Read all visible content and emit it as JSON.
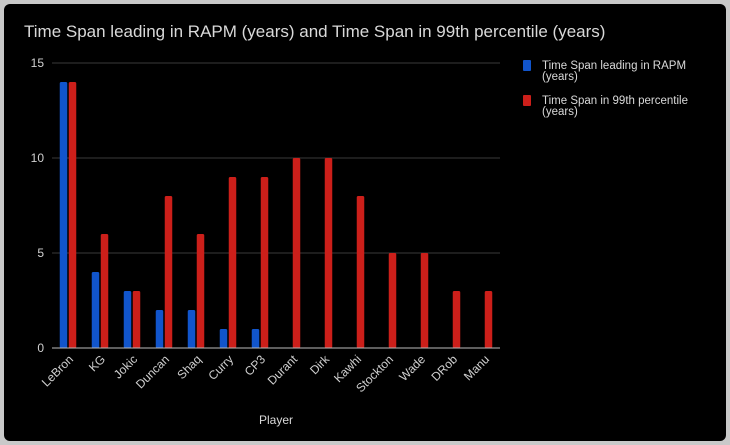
{
  "chart_data": {
    "type": "bar",
    "title": "Time Span leading in RAPM (years) and Time Span in 99th percentile (years)",
    "xlabel": "Player",
    "ylabel": "",
    "ylim": [
      0,
      15
    ],
    "yticks": [
      0,
      5,
      10,
      15
    ],
    "grid": true,
    "legend_position": "right",
    "categories": [
      "LeBron",
      "KG",
      "Jokic",
      "Duncan",
      "Shaq",
      "Curry",
      "CP3",
      "Durant",
      "Dirk",
      "Kawhi",
      "Stockton",
      "Wade",
      "DRob",
      "Manu"
    ],
    "series": [
      {
        "name": "Time Span leading in RAPM (years)",
        "legend_lines": [
          "Time Span leading in RAPM",
          "(years)"
        ],
        "color": "#1155cc",
        "values": [
          14,
          4,
          3,
          2,
          2,
          1,
          1,
          0,
          0,
          0,
          0,
          0,
          0,
          0
        ]
      },
      {
        "name": "Time Span in 99th percentile (years)",
        "legend_lines": [
          "Time Span in 99th percentile",
          "(years)"
        ],
        "color": "#cc1f1a",
        "values": [
          14,
          6,
          3,
          8,
          6,
          9,
          9,
          10,
          10,
          8,
          5,
          5,
          3,
          3
        ]
      }
    ]
  }
}
